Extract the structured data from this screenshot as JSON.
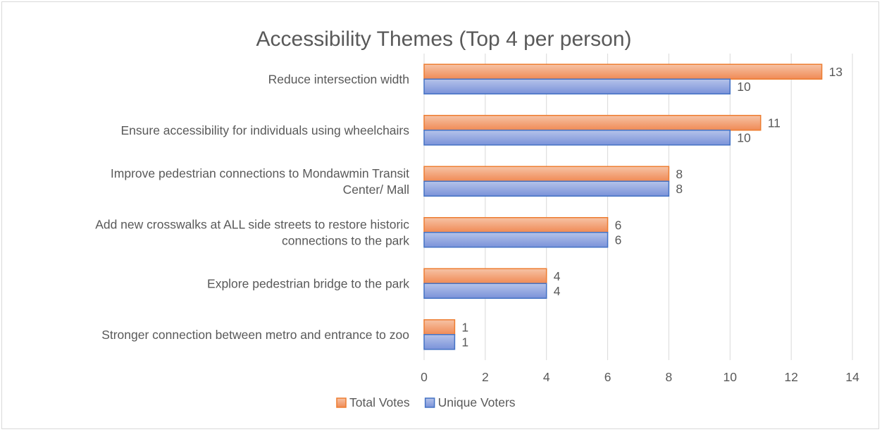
{
  "chart_data": {
    "type": "bar",
    "orientation": "horizontal",
    "title": "Accessibility Themes (Top 4 per person)",
    "categories": [
      "Reduce intersection width",
      "Ensure accessibility for individuals using wheelchairs",
      "Improve pedestrian connections to Mondawmin Transit Center/ Mall",
      "Add new crosswalks at ALL side streets to restore historic connections to the park",
      "Explore pedestrian bridge to the park",
      "Stronger connection between metro and entrance to zoo"
    ],
    "category_lines": [
      [
        "Reduce intersection width"
      ],
      [
        "Ensure accessibility for individuals using wheelchairs"
      ],
      [
        "Improve pedestrian connections to Mondawmin Transit",
        "Center/ Mall"
      ],
      [
        "Add new crosswalks at ALL side streets to restore historic",
        "connections to the park"
      ],
      [
        "Explore pedestrian bridge to the park"
      ],
      [
        "Stronger connection between metro and entrance to zoo"
      ]
    ],
    "series": [
      {
        "name": "Total Votes",
        "values": [
          13,
          11,
          8,
          6,
          4,
          1
        ],
        "fill_top": "#f6c3a6",
        "fill_bottom": "#f08a55",
        "stroke": "#ed7d31"
      },
      {
        "name": "Unique Voters",
        "values": [
          10,
          10,
          8,
          6,
          4,
          1
        ],
        "fill_top": "#b5c3ea",
        "fill_bottom": "#7a92d9",
        "stroke": "#4472c4"
      }
    ],
    "xlim": [
      0,
      14
    ],
    "xticks": [
      0,
      2,
      4,
      6,
      8,
      10,
      12,
      14
    ],
    "grid": true,
    "legend": "bottom"
  }
}
